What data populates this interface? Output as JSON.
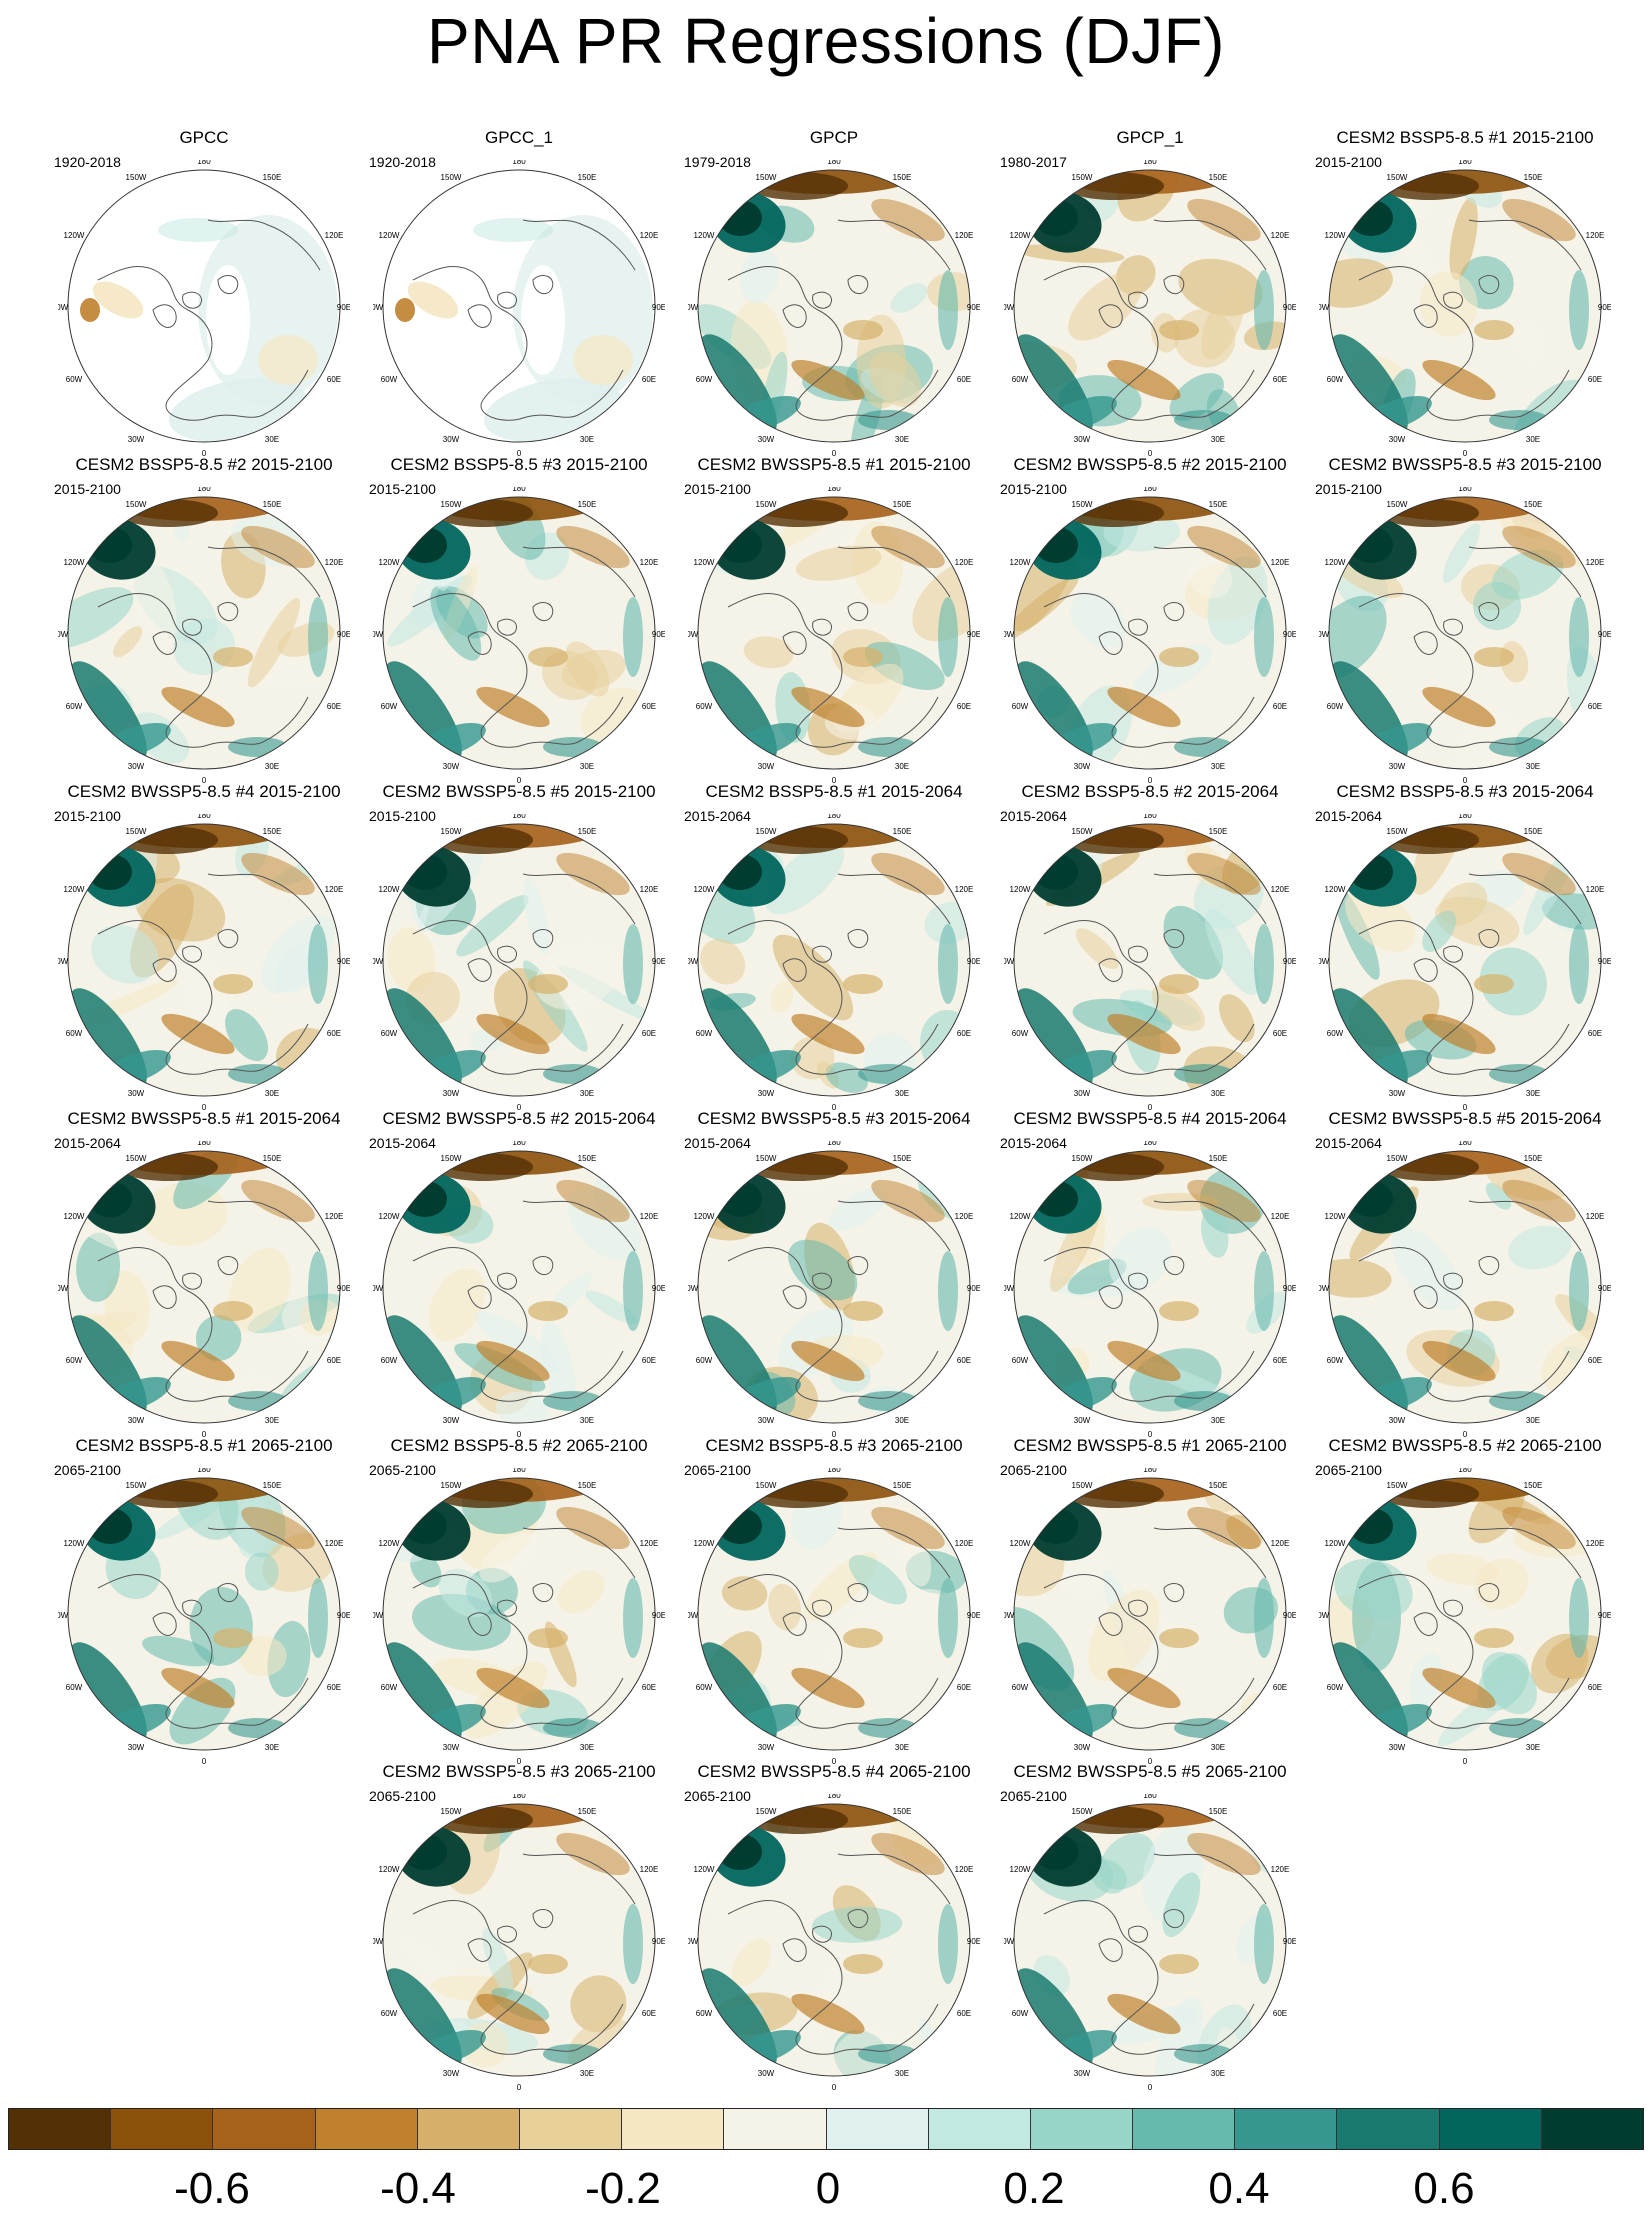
{
  "title": "PNA PR Regressions (DJF)",
  "map_labels": {
    "n": "180",
    "nw": "150W",
    "ne": "150E",
    "wnw": "120W",
    "ene": "120E",
    "w": "90W",
    "e": "90E",
    "wsw": "60W",
    "ese": "60E",
    "sw": "30W",
    "se": "30E",
    "s": "0"
  },
  "panels": [
    {
      "title": "GPCC",
      "period": "1920-2018",
      "kind": "obs_land"
    },
    {
      "title": "GPCC_1",
      "period": "1920-2018",
      "kind": "obs_land"
    },
    {
      "title": "GPCP",
      "period": "1979-2018",
      "kind": "full"
    },
    {
      "title": "GPCP_1",
      "period": "1980-2017",
      "kind": "full"
    },
    {
      "title": "CESM2 BSSP5-8.5 #1 2015-2100",
      "period": "2015-2100",
      "kind": "full"
    },
    {
      "title": "CESM2 BSSP5-8.5 #2 2015-2100",
      "period": "2015-2100",
      "kind": "full"
    },
    {
      "title": "CESM2 BSSP5-8.5 #3 2015-2100",
      "period": "2015-2100",
      "kind": "full"
    },
    {
      "title": "CESM2 BWSSP5-8.5 #1 2015-2100",
      "period": "2015-2100",
      "kind": "full"
    },
    {
      "title": "CESM2 BWSSP5-8.5 #2 2015-2100",
      "period": "2015-2100",
      "kind": "full"
    },
    {
      "title": "CESM2 BWSSP5-8.5 #3 2015-2100",
      "period": "2015-2100",
      "kind": "full"
    },
    {
      "title": "CESM2 BWSSP5-8.5 #4 2015-2100",
      "period": "2015-2100",
      "kind": "full"
    },
    {
      "title": "CESM2 BWSSP5-8.5 #5 2015-2100",
      "period": "2015-2100",
      "kind": "full"
    },
    {
      "title": "CESM2 BSSP5-8.5 #1 2015-2064",
      "period": "2015-2064",
      "kind": "full"
    },
    {
      "title": "CESM2 BSSP5-8.5 #2 2015-2064",
      "period": "2015-2064",
      "kind": "full"
    },
    {
      "title": "CESM2 BSSP5-8.5 #3 2015-2064",
      "period": "2015-2064",
      "kind": "full"
    },
    {
      "title": "CESM2 BWSSP5-8.5 #1 2015-2064",
      "period": "2015-2064",
      "kind": "full"
    },
    {
      "title": "CESM2 BWSSP5-8.5 #2 2015-2064",
      "period": "2015-2064",
      "kind": "full"
    },
    {
      "title": "CESM2 BWSSP5-8.5 #3 2015-2064",
      "period": "2015-2064",
      "kind": "full"
    },
    {
      "title": "CESM2 BWSSP5-8.5 #4 2015-2064",
      "period": "2015-2064",
      "kind": "full"
    },
    {
      "title": "CESM2 BWSSP5-8.5 #5 2015-2064",
      "period": "2015-2064",
      "kind": "full"
    },
    {
      "title": "CESM2 BSSP5-8.5 #1 2065-2100",
      "period": "2065-2100",
      "kind": "full"
    },
    {
      "title": "CESM2 BSSP5-8.5 #2 2065-2100",
      "period": "2065-2100",
      "kind": "full"
    },
    {
      "title": "CESM2 BSSP5-8.5 #3 2065-2100",
      "period": "2065-2100",
      "kind": "full"
    },
    {
      "title": "CESM2 BWSSP5-8.5 #1 2065-2100",
      "period": "2065-2100",
      "kind": "full"
    },
    {
      "title": "CESM2 BWSSP5-8.5 #2 2065-2100",
      "period": "2065-2100",
      "kind": "full"
    },
    {
      "title": "CESM2 BWSSP5-8.5 #3 2065-2100",
      "period": "2065-2100",
      "kind": "full"
    },
    {
      "title": "CESM2 BWSSP5-8.5 #4 2065-2100",
      "period": "2065-2100",
      "kind": "full"
    },
    {
      "title": "CESM2 BWSSP5-8.5 #5 2065-2100",
      "period": "2065-2100",
      "kind": "full"
    }
  ],
  "colorbar": {
    "colors": [
      "#543005",
      "#8c510a",
      "#a6611a",
      "#bf812d",
      "#d6b06a",
      "#e8d09a",
      "#f5e7c4",
      "#f5f3e8",
      "#e0f0ee",
      "#c2e8e2",
      "#97d5c9",
      "#66b9ad",
      "#35978f",
      "#1a7a70",
      "#01665e",
      "#003c30"
    ],
    "labels": [
      "-0.6",
      "-0.4",
      "-0.2",
      "0",
      "0.2",
      "0.4",
      "0.6"
    ]
  }
}
